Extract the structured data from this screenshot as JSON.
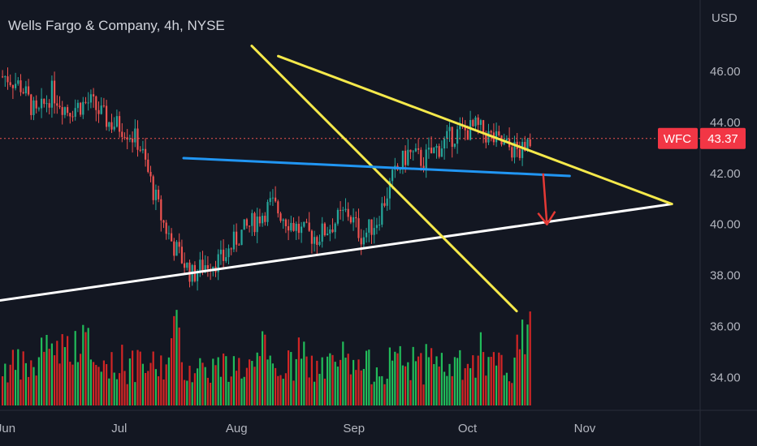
{
  "header": {
    "title": "Wells Fargo & Company, 4h, NYSE",
    "currency": "USD"
  },
  "last_price": {
    "symbol": "WFC",
    "value": "43.37"
  },
  "colors": {
    "background": "#131722",
    "up": "#26a69a",
    "down": "#ef5350",
    "volume_up": "#22c55e",
    "volume_down": "#dc2626",
    "badge": "#f23645",
    "trend_yellow": "#f5e94b",
    "trend_white": "#ffffff",
    "trend_blue": "#2196f3",
    "arrow_red": "#e53935",
    "price_line": "#ef5350"
  },
  "chart_data": {
    "type": "candlestick",
    "symbol": "WFC",
    "interval": "4h",
    "exchange": "NYSE",
    "last_price": 43.37,
    "y_ticks": [
      "46.00",
      "44.00",
      "42.00",
      "40.00",
      "38.00",
      "36.00",
      "34.00"
    ],
    "x_ticks": [
      "Jun",
      "Jul",
      "Aug",
      "Sep",
      "Oct",
      "Nov"
    ],
    "ylim": [
      32.9,
      48.8
    ],
    "price_path": [
      [
        0,
        45.8
      ],
      [
        4,
        45.4
      ],
      [
        8,
        44.2
      ],
      [
        12,
        45.2
      ],
      [
        16,
        44.5
      ],
      [
        22,
        44.8
      ],
      [
        27,
        44.0
      ],
      [
        31,
        43.8
      ],
      [
        35,
        43.2
      ],
      [
        41,
        40.2
      ],
      [
        44,
        39.2
      ],
      [
        49,
        38.0
      ],
      [
        53,
        38.5
      ],
      [
        57,
        38.6
      ],
      [
        61,
        39.5
      ],
      [
        66,
        40.2
      ],
      [
        70,
        40.8
      ],
      [
        74,
        40.2
      ],
      [
        78,
        39.7
      ],
      [
        82,
        39.5
      ],
      [
        86,
        40.0
      ],
      [
        90,
        40.5
      ],
      [
        94,
        39.5
      ],
      [
        98,
        40.2
      ],
      [
        102,
        41.8
      ],
      [
        106,
        42.8
      ],
      [
        110,
        42.5
      ],
      [
        114,
        43.0
      ],
      [
        118,
        43.5
      ],
      [
        124,
        43.8
      ],
      [
        130,
        43.2
      ],
      [
        136,
        42.8
      ],
      [
        142,
        43.5
      ],
      [
        148,
        43.2
      ],
      [
        154,
        43.8
      ],
      [
        158,
        43.5
      ],
      [
        164,
        45.0
      ],
      [
        170,
        45.2
      ],
      [
        176,
        45.8
      ],
      [
        182,
        46.0
      ],
      [
        187,
        45.0
      ],
      [
        192,
        45.5
      ],
      [
        197,
        44.0
      ],
      [
        202,
        43.5
      ],
      [
        207,
        44.5
      ],
      [
        212,
        43.8
      ],
      [
        218,
        44.8
      ],
      [
        222,
        45.7
      ],
      [
        226,
        44.0
      ],
      [
        232,
        44.2
      ],
      [
        236,
        43.8
      ],
      [
        242,
        43.0
      ],
      [
        248,
        40.2
      ],
      [
        254,
        40.5
      ],
      [
        260,
        40.8
      ],
      [
        266,
        41.8
      ],
      [
        270,
        41.0
      ],
      [
        274,
        43.0
      ],
      [
        278,
        42.8
      ],
      [
        282,
        41.0
      ],
      [
        286,
        40.1
      ],
      [
        290,
        42.5
      ],
      [
        293,
        43.4
      ]
    ],
    "trend_lines": [
      {
        "points": [
          [
            "May 25",
            36.9
          ],
          [
            "Nov 24",
            40.8
          ]
        ]
      },
      {
        "points": [
          [
            "Aug 5",
            47.0
          ],
          [
            "Oct 14",
            36.6
          ]
        ]
      },
      {
        "points": [
          [
            "Aug 12",
            46.6
          ],
          [
            "Nov 24",
            40.8
          ]
        ]
      },
      {
        "points": [
          [
            "Jul 18",
            42.6
          ],
          [
            "Oct 28",
            41.9
          ]
        ]
      }
    ],
    "arrow": {
      "from": [
        "Oct 21",
        42.0
      ],
      "to": [
        "Oct 22",
        40.0
      ]
    },
    "grid": false,
    "volume_pane": true
  }
}
